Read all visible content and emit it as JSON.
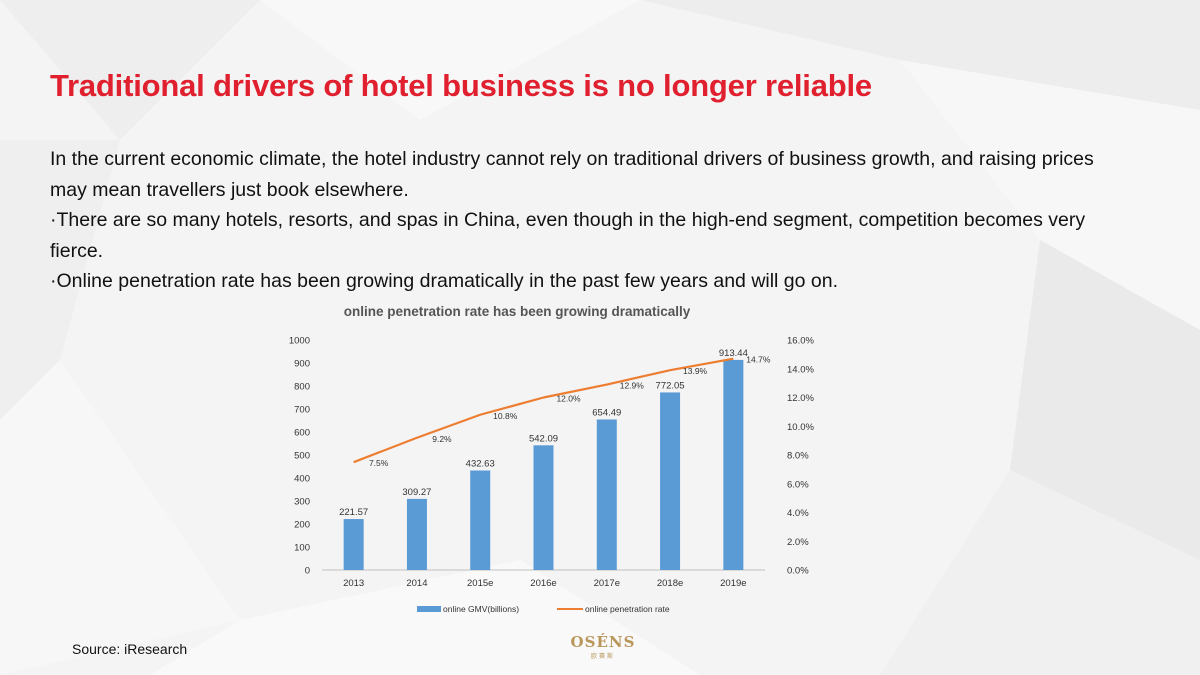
{
  "slide": {
    "title": "Traditional drivers of hotel business is no longer reliable",
    "paragraphs": [
      "In the current economic climate, the hotel industry cannot rely on traditional drivers of business growth, and raising prices may mean travellers just book elsewhere.",
      "·There are so many hotels, resorts, and spas in China, even though in the high-end segment, competition becomes very fierce.",
      "·Online penetration rate has been growing dramatically in the past few years and will go on."
    ],
    "source": "Source: iResearch",
    "logo": {
      "mark": "OSÉNS",
      "sub": "欧赛斯"
    }
  },
  "chart_data": {
    "type": "bar",
    "title": "online penetration rate has been growing dramatically",
    "categories": [
      "2013",
      "2014",
      "2015e",
      "2016e",
      "2017e",
      "2018e",
      "2019e"
    ],
    "series": [
      {
        "name": "online GMV(billions)",
        "type": "bar",
        "axis": "left",
        "values": [
          221.57,
          309.27,
          432.63,
          542.09,
          654.49,
          772.05,
          913.44
        ],
        "labels": [
          "221.57",
          "309.27",
          "432.63",
          "542.09",
          "654.49",
          "772.05",
          "913.44"
        ],
        "color": "#5b9bd5"
      },
      {
        "name": "online penetration rate",
        "type": "line",
        "axis": "right",
        "values": [
          7.5,
          9.2,
          10.8,
          12.0,
          12.9,
          13.9,
          14.7
        ],
        "labels": [
          "7.5%",
          "9.2%",
          "10.8%",
          "12.0%",
          "12.9%",
          "13.9%",
          "14.7%"
        ],
        "color": "#ed7d31"
      }
    ],
    "y_left": {
      "min": 0,
      "max": 1000,
      "step": 100,
      "ticks": [
        "0",
        "100",
        "200",
        "300",
        "400",
        "500",
        "600",
        "700",
        "800",
        "900",
        "1000"
      ]
    },
    "y_right": {
      "min": 0,
      "max": 16,
      "step": 2,
      "ticks": [
        "0.0%",
        "2.0%",
        "4.0%",
        "6.0%",
        "8.0%",
        "10.0%",
        "12.0%",
        "14.0%",
        "16.0%"
      ]
    },
    "grid": false,
    "legend_position": "bottom"
  },
  "colors": {
    "title": "#e0202e",
    "bar": "#5b9bd5",
    "line": "#ed7d31",
    "logo": "#b9975b"
  }
}
